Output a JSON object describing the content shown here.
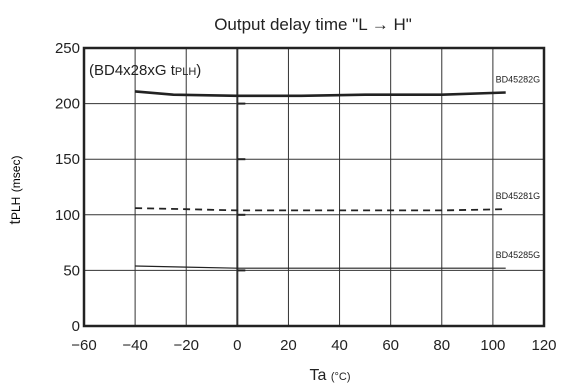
{
  "chart_data": {
    "type": "line",
    "title": "Output delay time \"L → H\"",
    "note": {
      "main": "(BD4x28xG t",
      "sub": "PLH",
      "close": ")"
    },
    "xlabel": {
      "main": "Ta",
      "unit": "(°C)"
    },
    "ylabel": {
      "main": "t",
      "sub": "PLH",
      "unit": "(msec)"
    },
    "xlim": [
      -60,
      120
    ],
    "ylim": [
      0,
      250
    ],
    "xticks": [
      -60,
      -40,
      -20,
      0,
      20,
      40,
      60,
      80,
      100,
      120
    ],
    "yticks": [
      0,
      50,
      100,
      150,
      200,
      250
    ],
    "grid": true,
    "series": [
      {
        "name": "BD45282G",
        "style": "solid-thick",
        "x": [
          -40,
          -25,
          0,
          25,
          50,
          80,
          105
        ],
        "y": [
          211,
          208,
          207,
          207,
          208,
          208,
          210
        ]
      },
      {
        "name": "BD45281G",
        "style": "dashed",
        "x": [
          -40,
          -20,
          0,
          25,
          50,
          80,
          105
        ],
        "y": [
          106,
          105,
          104,
          104,
          104,
          104,
          105
        ]
      },
      {
        "name": "BD45285G",
        "style": "solid-thin",
        "x": [
          -40,
          -20,
          0,
          25,
          50,
          80,
          105
        ],
        "y": [
          54,
          53,
          52,
          52,
          52,
          52,
          52
        ]
      }
    ]
  }
}
